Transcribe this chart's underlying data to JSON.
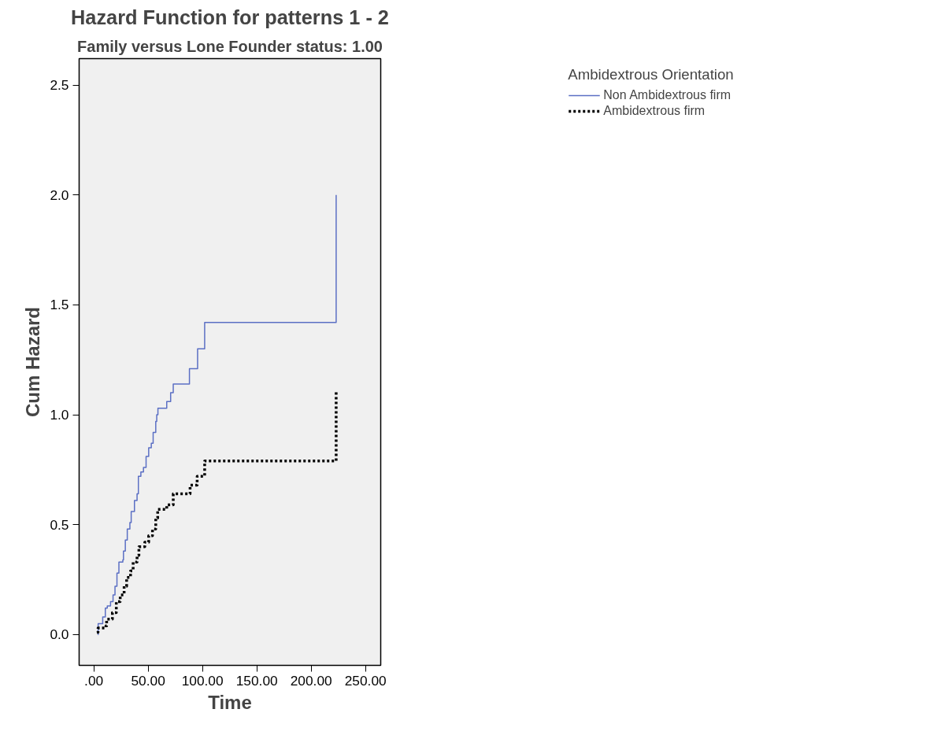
{
  "chart_data": {
    "type": "step",
    "title": "Hazard Function for patterns 1 - 2",
    "subtitle": "Family versus Lone Founder status: 1.00",
    "xlabel": "Time",
    "ylabel": "Cum Hazard",
    "legend_title": "Ambidextrous Orientation",
    "legend": "top right",
    "grid": false,
    "xlim": [
      -13.5,
      264
    ],
    "xticks": [
      {
        "value": 0,
        "label": ".00"
      },
      {
        "value": 50,
        "label": "50.00"
      },
      {
        "value": 100,
        "label": "100.00"
      },
      {
        "value": 150,
        "label": "150.00"
      },
      {
        "value": 200,
        "label": "200.00"
      },
      {
        "value": 250,
        "label": "250.00"
      }
    ],
    "ylim": [
      -0.14,
      2.62
    ],
    "yticks": [
      {
        "value": 0,
        "label": "0.0"
      },
      {
        "value": 0.5,
        "label": "0.5"
      },
      {
        "value": 1,
        "label": "1.0"
      },
      {
        "value": 1.5,
        "label": "1.5"
      },
      {
        "value": 2,
        "label": "2.0"
      },
      {
        "value": 2.5,
        "label": "2.5"
      }
    ],
    "series": [
      {
        "name": "Non Ambidextrous firm",
        "color": "#5b6fc4",
        "line_style": "solid",
        "x": [
          3.9,
          4.0,
          8.2,
          10.6,
          12.4,
          15.4,
          17.7,
          19.5,
          21.3,
          23.1,
          26.7,
          27.3,
          29,
          30.8,
          33.2,
          34.4,
          37.4,
          39.8,
          41,
          43.3,
          45.7,
          48.1,
          50.5,
          52.9,
          54.6,
          57,
          57.9,
          59,
          67.1,
          70.7,
          73.1,
          88,
          95.5,
          102,
          223
        ],
        "values": [
          0,
          0.05,
          0.08,
          0.12,
          0.13,
          0.15,
          0.18,
          0.22,
          0.28,
          0.33,
          0.34,
          0.38,
          0.43,
          0.48,
          0.51,
          0.56,
          0.61,
          0.64,
          0.72,
          0.74,
          0.76,
          0.81,
          0.85,
          0.87,
          0.92,
          0.97,
          1.0,
          1.03,
          1.06,
          1.1,
          1.14,
          1.21,
          1.3,
          1.42,
          2.0
        ]
      },
      {
        "name": "Ambidextrous firm",
        "color": "#000000",
        "line_style": "dotted",
        "x": [
          2.9,
          3.9,
          11.2,
          11.8,
          17.1,
          20.7,
          24.3,
          27.9,
          30.2,
          33.8,
          36.2,
          39.8,
          41.5,
          46.9,
          50.5,
          54,
          57,
          58.8,
          67.1,
          73.1,
          88.6,
          95.1,
          102,
          223
        ],
        "values": [
          0.01,
          0.03,
          0.04,
          0.07,
          0.1,
          0.15,
          0.18,
          0.22,
          0.26,
          0.29,
          0.33,
          0.36,
          0.4,
          0.42,
          0.45,
          0.48,
          0.53,
          0.57,
          0.59,
          0.64,
          0.68,
          0.72,
          0.79,
          1.11
        ]
      }
    ]
  }
}
